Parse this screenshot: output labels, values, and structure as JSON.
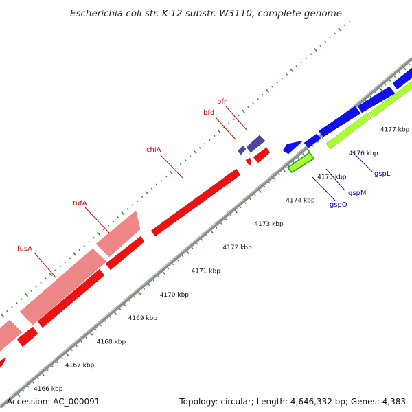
{
  "title": "Escherichia coli str. K-12 substr. W3110, complete genome",
  "footer": {
    "accession": "Accession: AC_000091",
    "summary": "Topology: circular; Length: 4,646,332 bp; Genes: 4,383"
  },
  "colors": {
    "backbone": "#8c8c8c",
    "tick": "#2e8b2e",
    "gene_forward": "#ee1111",
    "gene_forward_light": "#ee8888",
    "gene_reverse": "#1111ee",
    "gene_reverse_light": "#aaff33",
    "gene_dark": "#4a4a9a",
    "label_forward": "#cc0000",
    "label_reverse": "#0000cc"
  },
  "scale_kbp": [
    4166,
    4167,
    4168,
    4169,
    4170,
    4171,
    4172,
    4173,
    4174,
    4175,
    4176,
    4177
  ],
  "scale_unit": "kbp",
  "labels_forward": [
    "fusA",
    "tufA",
    "chiA",
    "bfd",
    "bfr"
  ],
  "labels_reverse": [
    "gspO",
    "gspM",
    "gspL"
  ]
}
